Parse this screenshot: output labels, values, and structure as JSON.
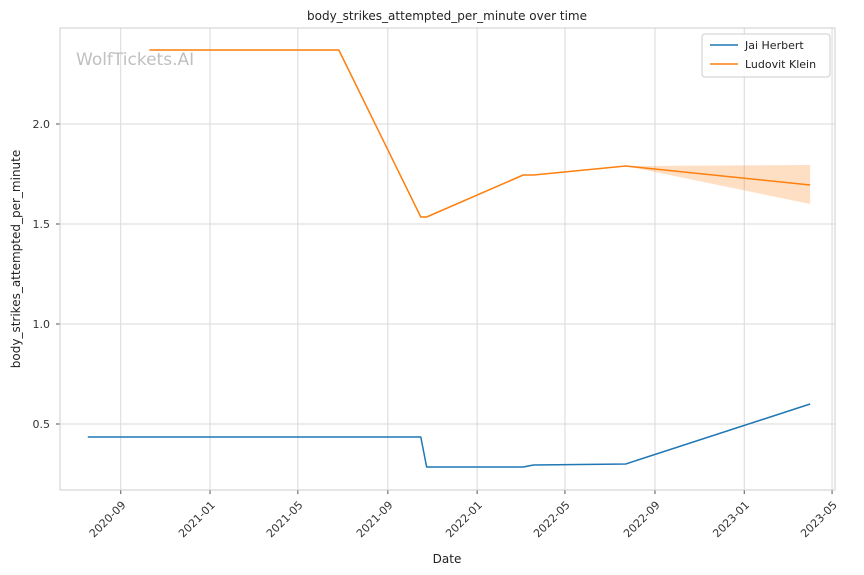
{
  "chart_data": {
    "type": "line",
    "title": "body_strikes_attempted_per_minute over time",
    "xlabel": "Date",
    "ylabel": "body_strikes_attempted_per_minute",
    "watermark": "WolfTickets.AI",
    "xlim": [
      "2020-06-10",
      "2023-05-05"
    ],
    "ylim": [
      0.17,
      2.48
    ],
    "x_ticks": [
      "2020-09",
      "2021-01",
      "2021-05",
      "2021-09",
      "2022-01",
      "2022-05",
      "2022-09",
      "2023-01",
      "2023-05"
    ],
    "y_ticks": [
      "0.5",
      "1.0",
      "1.5",
      "2.0"
    ],
    "grid": true,
    "legend": "top-right",
    "series": [
      {
        "name": "Jai Herbert",
        "color": "#1f77b4",
        "points": [
          {
            "x": "2020-07-18",
            "y": 0.435
          },
          {
            "x": "2021-10-16",
            "y": 0.435
          },
          {
            "x": "2021-10-24",
            "y": 0.285
          },
          {
            "x": "2022-03-05",
            "y": 0.285
          },
          {
            "x": "2022-03-19",
            "y": 0.295
          },
          {
            "x": "2022-07-23",
            "y": 0.3
          },
          {
            "x": "2023-04-01",
            "y": 0.6
          }
        ]
      },
      {
        "name": "Ludovit Klein",
        "color": "#ff7f0e",
        "points": [
          {
            "x": "2020-10-10",
            "y": 2.37
          },
          {
            "x": "2021-06-26",
            "y": 2.37
          },
          {
            "x": "2021-10-16",
            "y": 1.535
          },
          {
            "x": "2021-10-24",
            "y": 1.535
          },
          {
            "x": "2022-03-05",
            "y": 1.745
          },
          {
            "x": "2022-03-19",
            "y": 1.745
          },
          {
            "x": "2022-07-23",
            "y": 1.79
          },
          {
            "x": "2023-04-01",
            "y": 1.695
          }
        ],
        "band": [
          {
            "x": "2022-07-23",
            "low": 1.79,
            "high": 1.79
          },
          {
            "x": "2023-04-01",
            "low": 1.6,
            "high": 1.795
          }
        ]
      }
    ]
  }
}
